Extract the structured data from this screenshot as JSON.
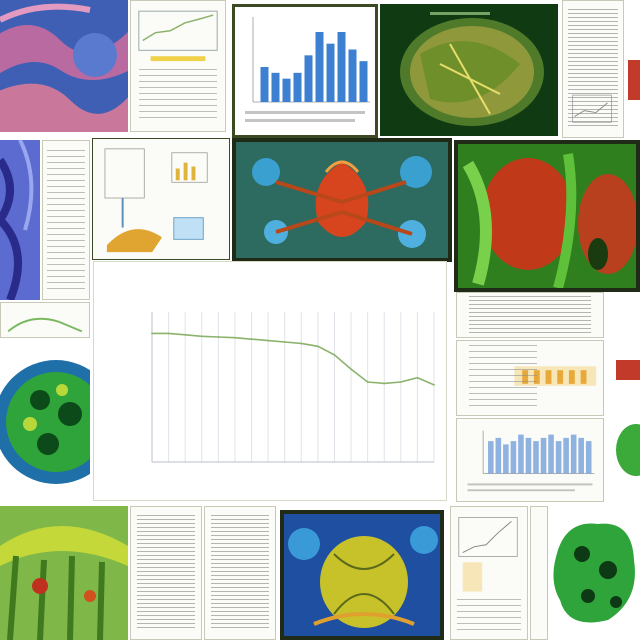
{
  "chart_data": {
    "type": "line",
    "title": "",
    "xlabel": "",
    "ylabel": "",
    "x": [
      "1",
      "2",
      "3",
      "4",
      "5",
      "6",
      "7",
      "8",
      "9",
      "10",
      "11",
      "12",
      "13",
      "14",
      "15",
      "16",
      "17",
      "18"
    ],
    "values": [
      330,
      330,
      328,
      326,
      325,
      324,
      322,
      320,
      318,
      316,
      312,
      300,
      280,
      262,
      260,
      262,
      268,
      258
    ],
    "ylim": [
      150,
      360
    ],
    "grid": true,
    "colors": {
      "line": "#8bb36b",
      "grid": "#dfe3ea"
    }
  },
  "mini_bar_chart": {
    "values": [
      6,
      5,
      4,
      5,
      8,
      12,
      10,
      12,
      9,
      7
    ],
    "color": "#3d7fd1"
  },
  "lower_bar_chart": {
    "values": [
      10,
      11,
      9,
      10,
      12,
      11,
      10,
      11,
      12,
      10,
      11,
      12,
      11,
      10
    ],
    "color": "#8fb2e0"
  },
  "colors": {
    "frame": "#1f2a17",
    "accent_green": "#3bb24a",
    "accent_blue": "#1d5fd0"
  }
}
